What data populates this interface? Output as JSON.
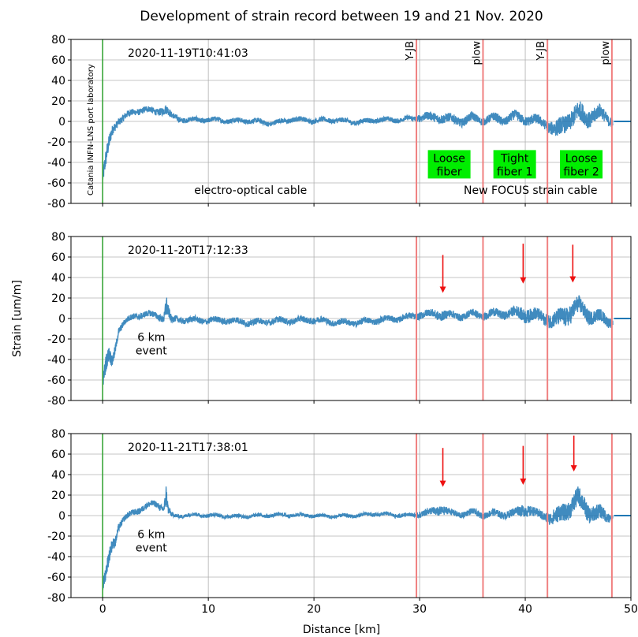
{
  "title": "Development of strain record between 19 and 21 Nov. 2020",
  "xlabel": "Distance [km]",
  "ylabel": "Strain [um/m]",
  "colors": {
    "trace": "#1f77b4",
    "marker_line": "#f08080",
    "origin_line": "#2ca02c",
    "arrow": "#ee1111",
    "label_box": "#00ee00"
  },
  "chart_data": [
    {
      "type": "scatter",
      "timestamp": "2020-11-19T10:41:03",
      "xlim": [
        -3,
        50
      ],
      "ylim": [
        -80,
        80
      ],
      "xticks": [
        0,
        10,
        20,
        30,
        40,
        50
      ],
      "yticks": [
        -80,
        -60,
        -40,
        -20,
        0,
        20,
        40,
        60,
        80
      ],
      "grid": true,
      "vertical_lines": [
        29.7,
        36.0,
        42.1,
        48.2
      ],
      "top_labels": [
        {
          "x": 29.7,
          "text": "Y-JB"
        },
        {
          "x": 36.0,
          "text": "plow"
        },
        {
          "x": 42.1,
          "text": "Y-JB"
        },
        {
          "x": 48.2,
          "text": "plow"
        }
      ],
      "rotated_label": {
        "x": -0.9,
        "text": "Catania INFN-LNS port laboratory"
      },
      "segment_labels": [
        {
          "x": 14,
          "y": -67,
          "text": "electro-optical cable"
        },
        {
          "x": 40.5,
          "y": -67,
          "text": "New FOCUS strain cable"
        }
      ],
      "green_boxes": [
        {
          "x": 32.8,
          "lines": [
            "Loose",
            "fiber"
          ]
        },
        {
          "x": 39.0,
          "lines": [
            "Tight",
            "fiber 1"
          ]
        },
        {
          "x": 45.3,
          "lines": [
            "Loose",
            "fiber 2"
          ]
        }
      ],
      "arrows": [],
      "event_label": null,
      "series": [
        {
          "x": [
            0,
            0.2,
            0.4,
            0.6,
            0.8,
            1.0,
            1.5,
            2,
            3,
            4,
            5,
            5.5,
            6,
            6.5,
            7,
            8,
            10,
            12,
            14,
            16,
            18,
            20,
            22,
            24,
            26,
            28,
            29.5,
            30,
            31,
            32,
            33,
            34,
            35,
            36,
            37,
            38,
            39,
            40,
            41,
            42,
            43,
            44,
            45,
            46,
            47,
            48,
            49,
            50
          ],
          "y": [
            -55,
            -45,
            -35,
            -25,
            -15,
            -8,
            0,
            3,
            8,
            12,
            9,
            12,
            14,
            6,
            4,
            2,
            1,
            0,
            1,
            -1,
            2,
            0,
            1,
            0,
            2,
            1,
            2,
            4,
            3,
            5,
            3,
            2,
            4,
            1,
            2,
            0,
            3,
            2,
            1,
            0,
            -8,
            4,
            6,
            3,
            5,
            0,
            0,
            0
          ],
          "band": [
            12,
            14,
            14,
            12,
            10,
            8,
            6,
            6,
            5,
            5,
            5,
            6,
            8,
            5,
            5,
            4,
            4,
            4,
            4,
            4,
            4,
            4,
            4,
            4,
            4,
            4,
            4,
            6,
            7,
            8,
            7,
            7,
            7,
            6,
            7,
            7,
            8,
            8,
            8,
            8,
            14,
            14,
            16,
            14,
            12,
            8,
            0,
            0
          ]
        }
      ]
    },
    {
      "type": "scatter",
      "timestamp": "2020-11-20T17:12:33",
      "xlim": [
        -3,
        50
      ],
      "ylim": [
        -80,
        80
      ],
      "xticks": [
        0,
        10,
        20,
        30,
        40,
        50
      ],
      "yticks": [
        -80,
        -60,
        -40,
        -20,
        0,
        20,
        40,
        60,
        80
      ],
      "grid": true,
      "vertical_lines": [
        29.7,
        36.0,
        42.1,
        48.2
      ],
      "top_labels": [],
      "rotated_label": null,
      "segment_labels": [],
      "green_boxes": [],
      "arrows": [
        {
          "x": 32.2,
          "y_from": 62,
          "y_to": 25
        },
        {
          "x": 39.8,
          "y_from": 73,
          "y_to": 34
        },
        {
          "x": 44.5,
          "y_from": 72,
          "y_to": 35
        }
      ],
      "event_label": {
        "x": 4.6,
        "lines": [
          "6 km",
          "event"
        ]
      },
      "series": [
        {
          "x": [
            0,
            0.3,
            0.6,
            0.9,
            1.2,
            1.5,
            2,
            3,
            4,
            5,
            5.8,
            6.0,
            6.2,
            6.5,
            7,
            8,
            10,
            12,
            14,
            16,
            18,
            20,
            22,
            24,
            26,
            28,
            29.5,
            30,
            31,
            32,
            33,
            34,
            35,
            36,
            37,
            38,
            39,
            40,
            41,
            42,
            43,
            44,
            45,
            46,
            47,
            48,
            49,
            50
          ],
          "y": [
            -65,
            -50,
            -40,
            -45,
            -30,
            -12,
            -5,
            2,
            5,
            4,
            2,
            18,
            8,
            -2,
            0,
            -2,
            -3,
            -2,
            -3,
            -2,
            -3,
            -2,
            -3,
            -3,
            -2,
            -1,
            2,
            4,
            5,
            6,
            4,
            3,
            4,
            2,
            3,
            4,
            5,
            7,
            4,
            3,
            -3,
            5,
            8,
            2,
            0,
            -3,
            0,
            0
          ],
          "band": [
            12,
            14,
            12,
            10,
            8,
            6,
            5,
            5,
            5,
            5,
            6,
            20,
            10,
            6,
            5,
            5,
            5,
            5,
            5,
            5,
            5,
            5,
            5,
            5,
            5,
            5,
            5,
            6,
            6,
            8,
            6,
            6,
            6,
            6,
            7,
            7,
            8,
            12,
            10,
            10,
            14,
            16,
            14,
            12,
            10,
            8,
            0,
            0
          ]
        }
      ]
    },
    {
      "type": "scatter",
      "timestamp": "2020-11-21T17:38:01",
      "xlim": [
        -3,
        50
      ],
      "ylim": [
        -80,
        80
      ],
      "xticks": [
        0,
        10,
        20,
        30,
        40,
        50
      ],
      "yticks": [
        -80,
        -60,
        -40,
        -20,
        0,
        20,
        40,
        60,
        80
      ],
      "grid": true,
      "vertical_lines": [
        29.7,
        36.0,
        42.1,
        48.2
      ],
      "top_labels": [],
      "rotated_label": null,
      "segment_labels": [],
      "green_boxes": [],
      "arrows": [
        {
          "x": 32.2,
          "y_from": 66,
          "y_to": 28
        },
        {
          "x": 39.8,
          "y_from": 68,
          "y_to": 30
        },
        {
          "x": 44.6,
          "y_from": 78,
          "y_to": 43
        }
      ],
      "event_label": {
        "x": 4.6,
        "lines": [
          "6 km",
          "event"
        ]
      },
      "series": [
        {
          "x": [
            0,
            0.3,
            0.6,
            0.9,
            1.2,
            1.5,
            2,
            3,
            4,
            5,
            5.8,
            6.0,
            6.2,
            6.5,
            7,
            8,
            10,
            12,
            14,
            16,
            18,
            20,
            22,
            24,
            26,
            28,
            29.5,
            30,
            31,
            32,
            33,
            34,
            35,
            36,
            37,
            38,
            39,
            40,
            41,
            42,
            43,
            44,
            45,
            46,
            47,
            48,
            49,
            50
          ],
          "y": [
            -72,
            -60,
            -45,
            -30,
            -25,
            -10,
            -3,
            4,
            10,
            12,
            8,
            22,
            5,
            0,
            -1,
            0,
            0,
            0,
            0,
            0,
            0,
            0,
            0,
            0,
            1,
            0,
            1,
            3,
            4,
            8,
            2,
            1,
            2,
            0,
            1,
            2,
            3,
            10,
            2,
            0,
            -5,
            5,
            12,
            4,
            2,
            0,
            0,
            0
          ],
          "band": [
            10,
            12,
            12,
            10,
            8,
            6,
            5,
            5,
            5,
            5,
            6,
            18,
            8,
            4,
            3,
            3,
            3,
            3,
            3,
            3,
            3,
            3,
            3,
            3,
            3,
            3,
            3,
            5,
            6,
            8,
            5,
            5,
            5,
            5,
            6,
            6,
            7,
            10,
            7,
            8,
            14,
            14,
            16,
            14,
            12,
            8,
            0,
            0
          ]
        }
      ]
    }
  ]
}
